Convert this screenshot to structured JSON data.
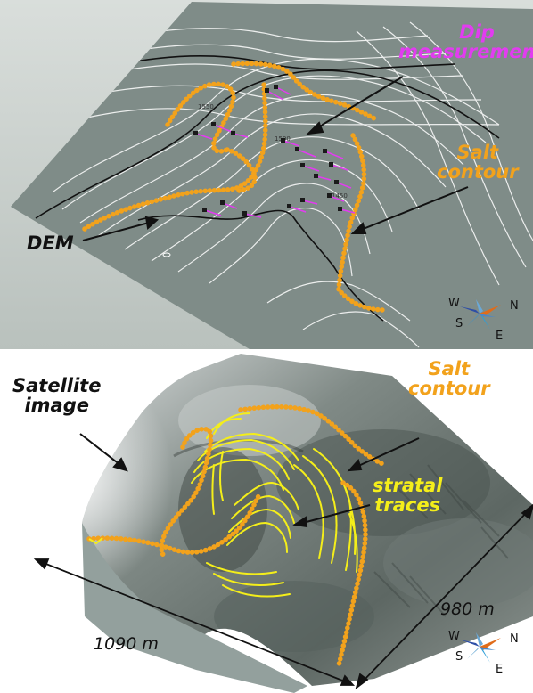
{
  "top_panel": {
    "labels": {
      "dip": [
        "Dip",
        "measurements"
      ],
      "salt": [
        "Salt",
        "contour"
      ],
      "dem": "DEM"
    },
    "contour_labels": [
      "1550",
      "1500",
      "1450"
    ],
    "compass": {
      "w": "W",
      "n": "N",
      "s": "S",
      "e": "E"
    }
  },
  "bottom_panel": {
    "labels": {
      "satellite": [
        "Satellite",
        "image"
      ],
      "salt": [
        "Salt",
        "contour"
      ],
      "stratal": [
        "stratal",
        "traces"
      ]
    },
    "dimensions": {
      "length": "1090 m",
      "width": "980 m"
    },
    "compass": {
      "w": "W",
      "n": "N",
      "s": "S",
      "e": "E"
    }
  },
  "colors": {
    "dem_surface": "#7f8c88",
    "background_sky": "#c5cbc7",
    "contour_white": "#ffffff",
    "contour_black": "#111111",
    "salt_orange": "#f2a21c",
    "dip_magenta": "#e23cf0",
    "stratal_yellow": "#f4ee1a"
  }
}
